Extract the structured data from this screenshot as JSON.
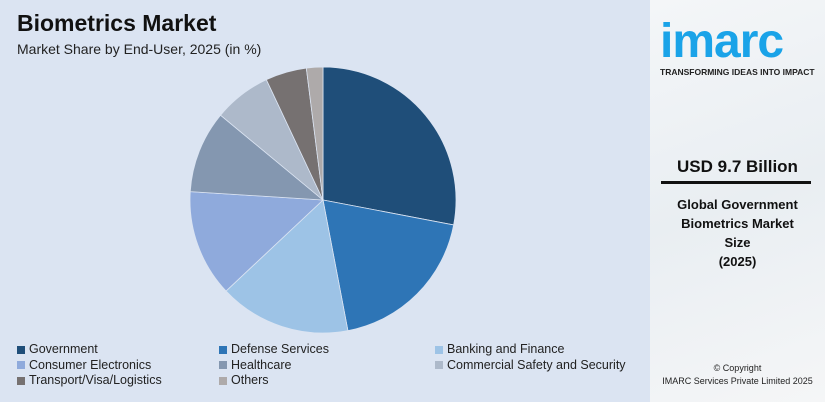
{
  "chart_data": {
    "type": "pie",
    "title": "Biometrics Market",
    "subtitle": "Market Share by End-User, 2025 (in %)",
    "categories": [
      "Government",
      "Defense Services",
      "Banking and Finance",
      "Consumer Electronics",
      "Healthcare",
      "Commercial Safety and Security",
      "Transport/Visa/Logistics",
      "Others"
    ],
    "values": [
      28,
      19,
      16,
      13,
      10,
      7,
      5,
      2
    ],
    "colors": [
      "#1f4e79",
      "#2e75b6",
      "#9dc3e6",
      "#8faadc",
      "#8497b0",
      "#adb9ca",
      "#767171",
      "#aeaaaa"
    ],
    "start": "top",
    "direction": "clockwise",
    "legend_position": "bottom"
  },
  "sidebar": {
    "logo": "imarc",
    "tagline": "TRANSFORMING IDEAS INTO IMPACT",
    "market_size": "USD 9.7 Billion",
    "desc_lines": [
      "Global Government",
      "Biometrics Market",
      "Size",
      "(2025)"
    ],
    "copyright": "© Copyright",
    "company": "IMARC Services Private Limited 2025"
  },
  "accent_color": "#1aa3e8"
}
